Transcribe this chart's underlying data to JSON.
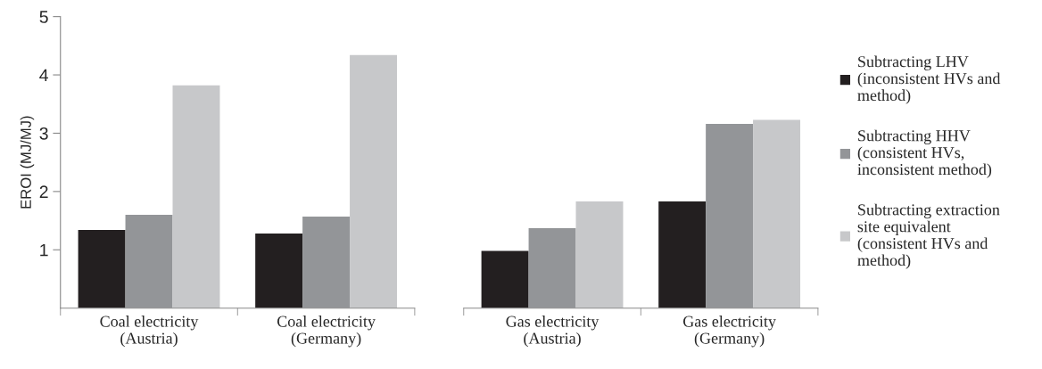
{
  "chart_data": [
    {
      "type": "bar",
      "ylabel": "EROI (MJ/MJ)",
      "categories": [
        "Coal electricity\n(Austria)",
        "Coal electricity\n(Germany)"
      ],
      "ylim": [
        0,
        5
      ],
      "yticks": [
        1,
        2,
        3,
        4,
        5
      ],
      "grid": false,
      "series": [
        {
          "color": "#231f20",
          "values": [
            1.34,
            1.28
          ]
        },
        {
          "color": "#939598",
          "values": [
            1.6,
            1.57
          ]
        },
        {
          "color": "#c7c8ca",
          "values": [
            3.82,
            4.34
          ]
        }
      ]
    },
    {
      "type": "bar",
      "categories": [
        "Gas electricity\n(Austria)",
        "Gas electricity\n(Germany)"
      ],
      "ylim": [
        0,
        5
      ],
      "tick_labels": "x",
      "grid": false,
      "legend": "right",
      "series": [
        {
          "name": "Subtracting LHV\n(inconsistent HVs and\nmethod)",
          "color": "#231f20",
          "values": [
            0.98,
            1.83
          ]
        },
        {
          "name": "Subtracting HHV\n(consistent HVs,\ninconsistent method)",
          "color": "#939598",
          "values": [
            1.37,
            3.16
          ]
        },
        {
          "name": "Subtracting extraction\nsite equivalent\n(consistent HVs and\nmethod)",
          "color": "#c7c8ca",
          "values": [
            1.83,
            3.23
          ]
        }
      ]
    }
  ]
}
